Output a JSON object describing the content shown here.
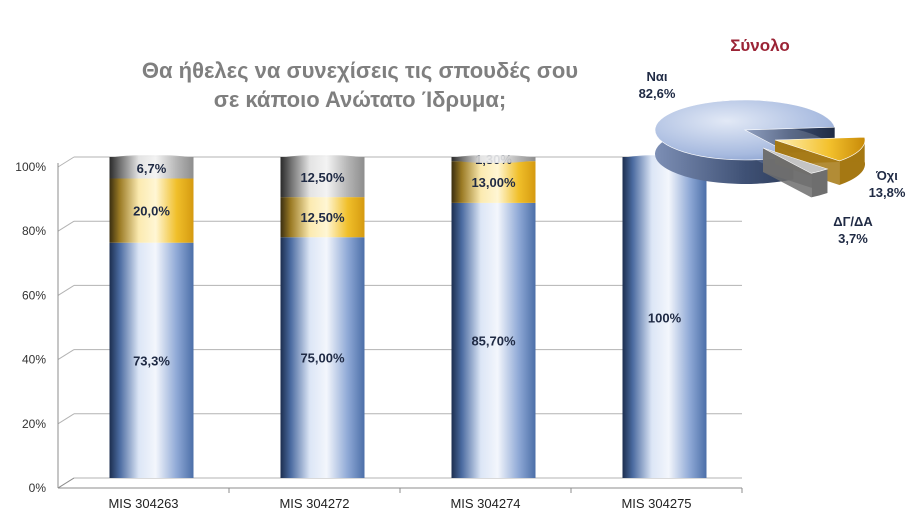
{
  "chart_data": [
    {
      "type": "bar",
      "stacked": true,
      "title_lines": [
        "Θα ήθελες να συνεχίσεις τις σπουδές σου",
        "σε κάποιο Ανώτατο Ίδρυμα;"
      ],
      "categories": [
        "MIS 304263",
        "MIS 304272",
        "MIS 304274",
        "MIS 304275"
      ],
      "series": [
        {
          "values": [
            73.3,
            75.0,
            85.7,
            100.0
          ],
          "labels": [
            "73,3%",
            "75,00%",
            "85,70%",
            "100%"
          ],
          "color": "#b7cbec"
        },
        {
          "values": [
            20.0,
            12.5,
            13.0,
            0.0
          ],
          "labels": [
            "20,0%",
            "12,50%",
            "13,00%",
            ""
          ],
          "color": "#f3c44a"
        },
        {
          "values": [
            6.7,
            12.5,
            1.3,
            0.0
          ],
          "labels": [
            "6,7%",
            "12,50%",
            "1,30%",
            ""
          ],
          "color": "#c9c9c9"
        }
      ],
      "yticks": [
        "0%",
        "20%",
        "40%",
        "60%",
        "80%",
        "100%"
      ],
      "ylim": [
        0,
        100
      ],
      "grid": true,
      "legend": "none"
    },
    {
      "type": "pie",
      "title": "Σύνολο",
      "slices": [
        {
          "name": "Ναι",
          "value": 82.6,
          "label": "82,6%",
          "color": "#aebfdf"
        },
        {
          "name": "Όχι",
          "value": 13.8,
          "label": "13,8%",
          "color": "#f2b820"
        },
        {
          "name": "ΔΓ/ΔΑ",
          "value": 3.7,
          "label": "3,7%",
          "color": "#bfbfbf"
        }
      ]
    }
  ]
}
